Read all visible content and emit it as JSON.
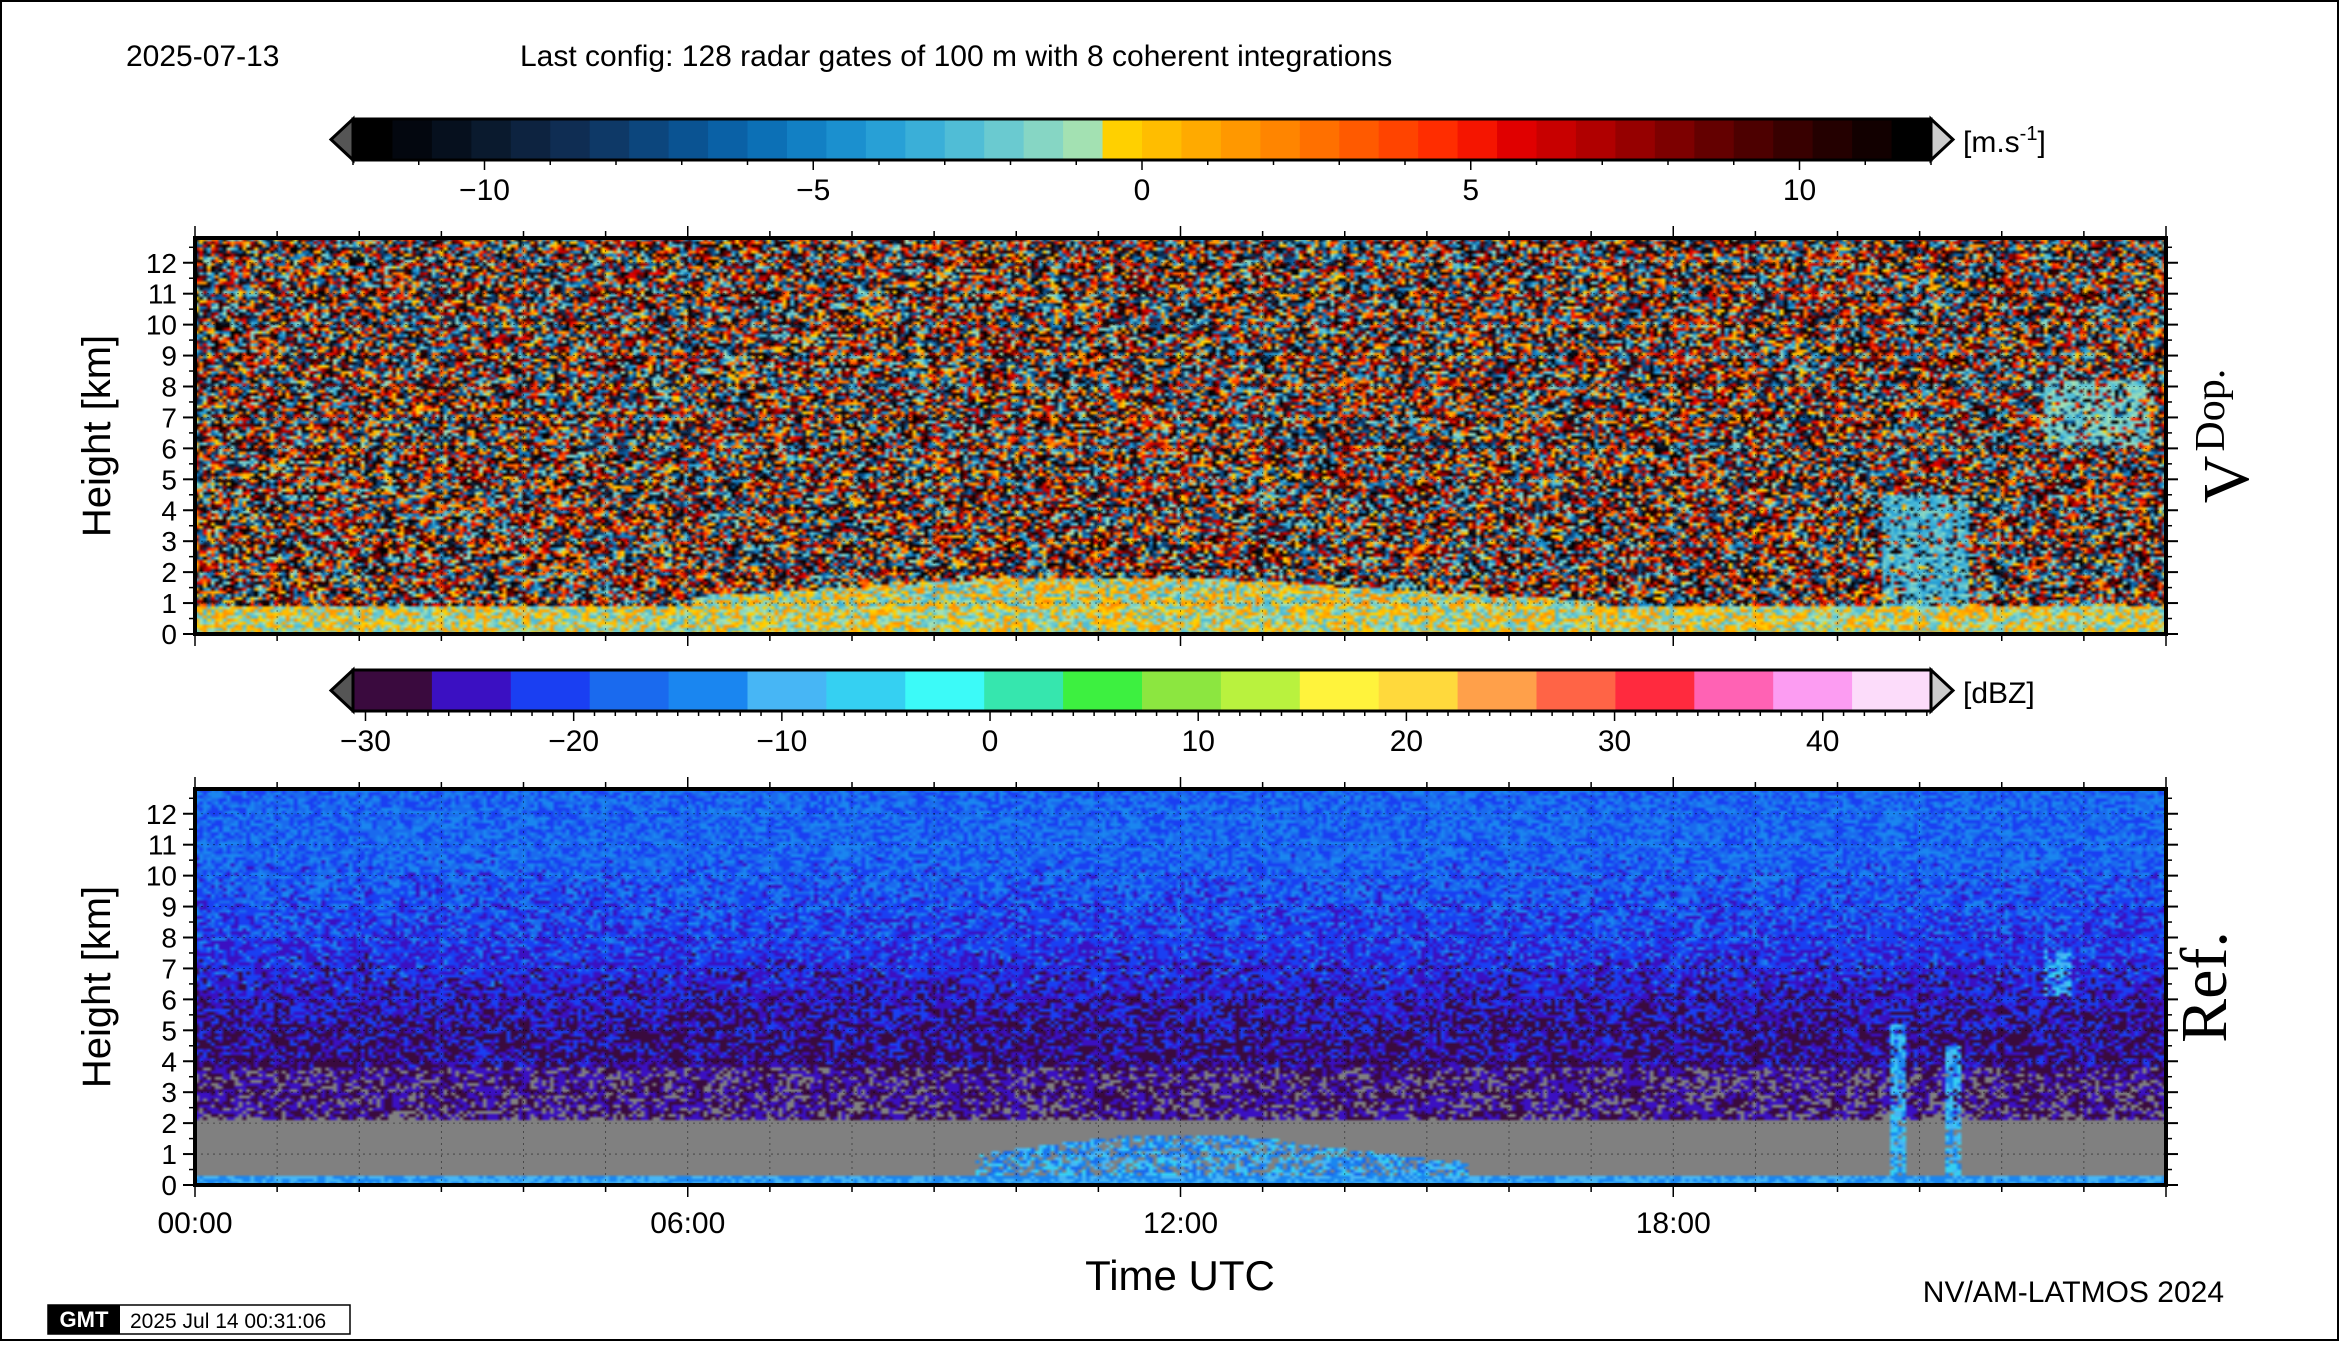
{
  "header": {
    "date": "2025-07-13",
    "config": "Last config: 128 radar gates of 100 m with 8 coherent integrations"
  },
  "footer": {
    "credit": "NV/AM-LATMOS 2024",
    "gmt_logo": "GMT",
    "timestamp": "2025 Jul 14 00:31:06"
  },
  "chart_data": [
    {
      "type": "heatmap",
      "panel_label": "V",
      "panel_label_sub": "Dop.",
      "ylabel": "Height [km]",
      "ylim": [
        0,
        12.8
      ],
      "yticks": [
        "0",
        "1",
        "2",
        "3",
        "4",
        "5",
        "6",
        "7",
        "8",
        "9",
        "10",
        "11",
        "12"
      ],
      "xlim_hours": [
        0,
        24
      ],
      "grid": true,
      "colorbar": {
        "unit_main": "[m.s",
        "unit_sup": "-1",
        "unit_close": "]",
        "range": [
          -12,
          12
        ],
        "ticks": [
          -10,
          -5,
          0,
          5,
          10
        ],
        "tick_labels": [
          "−10",
          "−5",
          "0",
          "5",
          "10"
        ],
        "colors": [
          "#000000",
          "#03070f",
          "#06101e",
          "#0a1a2e",
          "#0d2340",
          "#0f2d53",
          "#0e3967",
          "#0c467d",
          "#0a5392",
          "#0a61a6",
          "#0c70b6",
          "#1280c4",
          "#1b90cf",
          "#28a0d6",
          "#3aafd8",
          "#50bdd6",
          "#6acad0",
          "#86d6c4",
          "#a3e1b2",
          "#ffd000",
          "#ffbd00",
          "#ffaa00",
          "#ff9800",
          "#ff8500",
          "#ff7000",
          "#ff5a00",
          "#ff4400",
          "#ff2d00",
          "#f51500",
          "#e00000",
          "#c80000",
          "#b00000",
          "#960000",
          "#7d0000",
          "#640000",
          "#4d0000",
          "#380000",
          "#240000",
          "#120000",
          "#000000"
        ],
        "below_color": "#555555",
        "above_color": "#cccccc"
      }
    },
    {
      "type": "heatmap",
      "panel_label": "Ref.",
      "ylabel": "Height [km]",
      "xlabel": "Time UTC",
      "ylim": [
        0,
        12.8
      ],
      "yticks": [
        "0",
        "1",
        "2",
        "3",
        "4",
        "5",
        "6",
        "7",
        "8",
        "9",
        "10",
        "11",
        "12"
      ],
      "xlim_hours": [
        0,
        24
      ],
      "xticks": [
        "00:00",
        "06:00",
        "12:00",
        "18:00"
      ],
      "grid": true,
      "missing_color": "#808080",
      "colorbar": {
        "unit": "[dBZ]",
        "range": [
          -30.6,
          45.2
        ],
        "ticks": [
          -30,
          -20,
          -10,
          0,
          10,
          20,
          30,
          40
        ],
        "tick_labels": [
          "−30",
          "−20",
          "−10",
          "0",
          "10",
          "20",
          "30",
          "40"
        ],
        "colors": [
          "#3a0a3e",
          "#3b10c2",
          "#1a3ff2",
          "#1a6aee",
          "#1a86f0",
          "#47b6f5",
          "#35d0f2",
          "#3cfaf8",
          "#36e6ae",
          "#3df040",
          "#8ce640",
          "#b9f23e",
          "#fff33c",
          "#ffd93c",
          "#ffa04a",
          "#ff6446",
          "#ff2a3e",
          "#ff62b4",
          "#fc9cf2",
          "#fcdcfa"
        ],
        "below_color": "#555555",
        "above_color": "#cccccc"
      }
    }
  ]
}
